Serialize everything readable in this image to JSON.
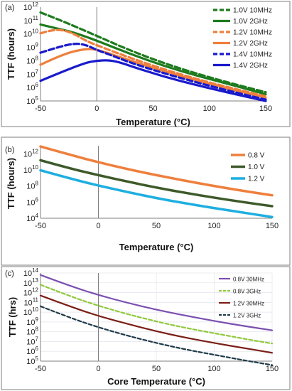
{
  "chart_data": [
    {
      "panel_label": "(a)",
      "type": "line",
      "xlabel": "Temperature (°C)",
      "ylabel": "TTF (hours)",
      "xlim": [
        -50,
        150
      ],
      "ylim_log10": [
        5,
        12
      ],
      "y_scale": "log",
      "xticks": [
        "-50",
        "0",
        "50",
        "100",
        "150"
      ],
      "yticks": [
        {
          "base": "10",
          "exp": "5"
        },
        {
          "base": "10",
          "exp": "6"
        },
        {
          "base": "10",
          "exp": "7"
        },
        {
          "base": "10",
          "exp": "8"
        },
        {
          "base": "10",
          "exp": "9"
        },
        {
          "base": "10",
          "exp": "10"
        },
        {
          "base": "10",
          "exp": "11"
        },
        {
          "base": "10",
          "exp": "12"
        }
      ],
      "legend": "top-right",
      "series": [
        {
          "name": "1.0V 10MHz",
          "color": "#1e7b1e",
          "dash": true,
          "x": [
            -50,
            -30,
            0,
            30,
            60,
            90,
            120,
            150
          ],
          "y_log10": [
            11.6,
            10.95,
            9.85,
            8.75,
            7.8,
            7.0,
            6.3,
            5.65
          ]
        },
        {
          "name": "1.0V 2GHz",
          "color": "#1e7b1e",
          "dash": false,
          "x": [
            -50,
            -40,
            -30,
            -20,
            0,
            30,
            60,
            90,
            120,
            150
          ],
          "y_log10": [
            10.7,
            10.5,
            10.3,
            10.1,
            9.5,
            8.5,
            7.6,
            6.85,
            6.2,
            5.5
          ]
        },
        {
          "name": "1.2V 10MHz",
          "color": "#ee7f3c",
          "dash": true,
          "x": [
            -50,
            -40,
            -30,
            -20,
            -10,
            0,
            30,
            60,
            90,
            120,
            150
          ],
          "y_log10": [
            10.05,
            10.3,
            10.3,
            10.0,
            9.5,
            9.15,
            8.2,
            7.35,
            6.6,
            5.95,
            5.35
          ]
        },
        {
          "name": "1.2V 2GHz",
          "color": "#ee7f3c",
          "dash": false,
          "x": [
            -50,
            -30,
            -10,
            0,
            30,
            60,
            90,
            120,
            150
          ],
          "y_log10": [
            7.7,
            8.5,
            8.9,
            8.85,
            8.0,
            7.2,
            6.5,
            5.85,
            5.25
          ]
        },
        {
          "name": "1.4V 10MHz",
          "color": "#1a1acc",
          "dash": true,
          "x": [
            -50,
            -35,
            -20,
            -10,
            0,
            10,
            30,
            60,
            90,
            120,
            150
          ],
          "y_log10": [
            8.6,
            9.0,
            9.3,
            9.2,
            8.8,
            8.5,
            7.85,
            7.05,
            6.35,
            5.7,
            5.1
          ]
        },
        {
          "name": "1.4V 2GHz",
          "color": "#1a1acc",
          "dash": false,
          "x": [
            -50,
            -30,
            -10,
            0,
            10,
            20,
            30,
            60,
            90,
            120,
            150
          ],
          "y_log10": [
            6.5,
            7.2,
            7.85,
            8.0,
            8.05,
            7.9,
            7.6,
            6.8,
            6.15,
            5.55,
            5.0
          ]
        }
      ]
    },
    {
      "panel_label": "(b)",
      "type": "line",
      "xlabel": "Temperature (°C)",
      "ylabel": "TTF (hours)",
      "xlim": [
        -50,
        150
      ],
      "ylim_log10": [
        4,
        13
      ],
      "y_scale": "log",
      "xticks": [
        "-50",
        "0",
        "50",
        "100",
        "150"
      ],
      "yticks": [
        {
          "base": "10",
          "exp": "4"
        },
        {
          "base": "10",
          "exp": "6"
        },
        {
          "base": "10",
          "exp": "8"
        },
        {
          "base": "10",
          "exp": "10"
        },
        {
          "base": "10",
          "exp": "12"
        }
      ],
      "legend": "top-right",
      "series": [
        {
          "name": "0.8 V",
          "color": "#ee7f3c",
          "x": [
            -50,
            -25,
            0,
            25,
            50,
            75,
            100,
            125,
            150
          ],
          "y_log10": [
            12.9,
            11.9,
            10.95,
            10.1,
            9.35,
            8.65,
            8.0,
            7.4,
            6.85
          ]
        },
        {
          "name": "1.0 V",
          "color": "#3d5a2a",
          "x": [
            -50,
            -25,
            0,
            25,
            50,
            75,
            100,
            125,
            150
          ],
          "y_log10": [
            11.2,
            10.2,
            9.35,
            8.55,
            7.8,
            7.15,
            6.55,
            6.0,
            5.5
          ]
        },
        {
          "name": "1.2 V",
          "color": "#1eaee0",
          "x": [
            -50,
            -25,
            0,
            25,
            50,
            75,
            100,
            125,
            150
          ],
          "y_log10": [
            9.95,
            8.95,
            8.05,
            7.25,
            6.5,
            5.85,
            5.25,
            4.7,
            4.15
          ]
        }
      ]
    },
    {
      "panel_label": "(c)",
      "type": "line",
      "xlabel": "Core Temperature (°C)",
      "ylabel": "TTF (hrs)",
      "xlim": [
        -50,
        150
      ],
      "ylim_log10": [
        5,
        14
      ],
      "y_scale": "log",
      "xticks": [
        "-50",
        "0",
        "50",
        "100",
        "150"
      ],
      "yticks": [
        {
          "base": "10",
          "exp": "5"
        },
        {
          "base": "10",
          "exp": "6"
        },
        {
          "base": "10",
          "exp": "7"
        },
        {
          "base": "10",
          "exp": "8"
        },
        {
          "base": "10",
          "exp": "9"
        },
        {
          "base": "10",
          "exp": "10"
        },
        {
          "base": "10",
          "exp": "11"
        },
        {
          "base": "10",
          "exp": "12"
        },
        {
          "base": "10",
          "exp": "13"
        },
        {
          "base": "10",
          "exp": "14"
        }
      ],
      "legend": "top-right",
      "grid": true,
      "series": [
        {
          "name": "0.8V 30MHz",
          "color": "#7a4fb0",
          "dash": false,
          "x": [
            -50,
            -25,
            0,
            25,
            50,
            75,
            100,
            125,
            150
          ],
          "y_log10": [
            13.8,
            12.7,
            11.75,
            10.95,
            10.25,
            9.65,
            9.1,
            8.6,
            8.15
          ]
        },
        {
          "name": "0.8V 3GHz",
          "color": "#8fc83c",
          "dash": true,
          "x": [
            -50,
            -25,
            0,
            25,
            50,
            75,
            100,
            125,
            150
          ],
          "y_log10": [
            12.8,
            11.65,
            10.65,
            9.8,
            9.05,
            8.4,
            7.85,
            7.3,
            6.8
          ]
        },
        {
          "name": "1.2V 30MHz",
          "color": "#7b1e16",
          "dash": false,
          "x": [
            -50,
            -25,
            0,
            25,
            50,
            75,
            100,
            125,
            150
          ],
          "y_log10": [
            11.7,
            10.6,
            9.6,
            8.8,
            8.05,
            7.4,
            6.85,
            6.35,
            5.85
          ]
        },
        {
          "name": "1.2V 3GHz",
          "color": "#1f3a4a",
          "dash": true,
          "x": [
            -50,
            -25,
            0,
            25,
            50,
            75,
            100,
            125,
            150
          ],
          "y_log10": [
            10.6,
            9.45,
            8.45,
            7.6,
            6.85,
            6.2,
            5.65,
            5.1,
            4.6
          ]
        }
      ]
    }
  ]
}
